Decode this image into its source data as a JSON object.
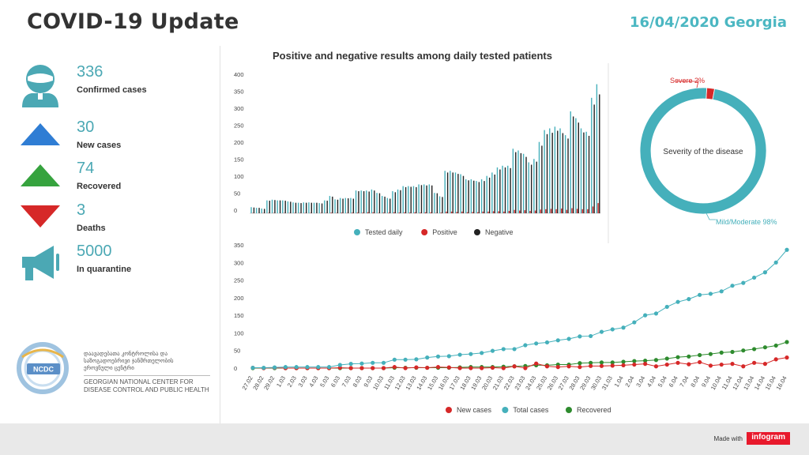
{
  "header": {
    "title": "COVID-19 Update",
    "date": "16/04/2020 Georgia"
  },
  "stats": [
    {
      "value": "336",
      "label": "Confirmed cases",
      "icon": "person-icon",
      "color": "#4ba8b4"
    },
    {
      "value": "30",
      "label": "New cases",
      "icon": "triangle-up-blue-icon",
      "color": "#2f7dd4"
    },
    {
      "value": "74",
      "label": "Recovered",
      "icon": "triangle-up-green-icon",
      "color": "#36a33e"
    },
    {
      "value": "3",
      "label": "Deaths",
      "icon": "triangle-down-red-icon",
      "color": "#d62828"
    },
    {
      "value": "5000",
      "label": "In quarantine",
      "icon": "megaphone-icon",
      "color": "#4ba8b4"
    }
  ],
  "logo": {
    "badge": "NCDC",
    "text_ka": "დაავადებათა კონტროლისა და საზოგადოებრივი ჯანმრთელობის ეროვნული ცენტრი",
    "text_en": "GEORGIAN NATIONAL CENTER FOR DISEASE CONTROL AND PUBLIC HEALTH"
  },
  "footer": {
    "made_with": "Made with",
    "brand": "infogram"
  },
  "chart_data": [
    {
      "type": "bar",
      "title": "Positive and negative results among daily tested patients",
      "ylim": [
        0,
        400
      ],
      "yticks": [
        0,
        50,
        100,
        150,
        200,
        250,
        300,
        350,
        400
      ],
      "legend_position": "bottom",
      "series": [
        {
          "name": "Tested daily",
          "color": "#45b0bb",
          "values": [
            18,
            16,
            14,
            38,
            40,
            38,
            38,
            35,
            32,
            31,
            32,
            32,
            31,
            30,
            38,
            51,
            41,
            45,
            45,
            45,
            67,
            67,
            67,
            70,
            60,
            51,
            45,
            65,
            70,
            80,
            80,
            80,
            85,
            85,
            85,
            60,
            50,
            125,
            125,
            120,
            115,
            100,
            100,
            95,
            100,
            110,
            120,
            135,
            140,
            140,
            190,
            185,
            175,
            150,
            160,
            210,
            245,
            250,
            255,
            250,
            230,
            300,
            280,
            250,
            240,
            340,
            380
          ]
        },
        {
          "name": "Positive",
          "color": "#d62828",
          "values": [
            1,
            0,
            1,
            1,
            1,
            0,
            1,
            1,
            1,
            1,
            1,
            1,
            0,
            1,
            1,
            2,
            1,
            2,
            1,
            2,
            2,
            2,
            3,
            3,
            1,
            2,
            2,
            3,
            2,
            3,
            2,
            3,
            2,
            3,
            3,
            1,
            2,
            5,
            5,
            4,
            5,
            3,
            4,
            3,
            5,
            5,
            6,
            6,
            5,
            7,
            10,
            8,
            9,
            7,
            8,
            11,
            12,
            13,
            12,
            14,
            10,
            15,
            13,
            12,
            12,
            20,
            30
          ]
        },
        {
          "name": "Negative",
          "color": "#222222",
          "values": [
            17,
            16,
            13,
            37,
            39,
            38,
            37,
            34,
            31,
            30,
            31,
            31,
            31,
            29,
            37,
            49,
            40,
            43,
            44,
            43,
            65,
            65,
            64,
            67,
            59,
            49,
            43,
            62,
            68,
            77,
            78,
            77,
            83,
            82,
            82,
            59,
            48,
            120,
            120,
            116,
            110,
            97,
            96,
            92,
            95,
            105,
            114,
            129,
            135,
            133,
            180,
            177,
            166,
            143,
            152,
            199,
            233,
            237,
            243,
            236,
            220,
            285,
            267,
            238,
            228,
            320,
            350
          ]
        }
      ]
    },
    {
      "type": "pie",
      "title": "Severity of the disease",
      "center_label": "Severity of the disease",
      "slices": [
        {
          "label": "Severe 2%",
          "value": 2,
          "color": "#d62828"
        },
        {
          "label": "Mild/Moderate 98%",
          "value": 98,
          "color": "#45b0bb"
        }
      ]
    },
    {
      "type": "line",
      "ylim": [
        0,
        350
      ],
      "yticks": [
        0,
        50,
        100,
        150,
        200,
        250,
        300,
        350
      ],
      "legend_position": "bottom",
      "categories": [
        "27.02",
        "28.02",
        "29.02",
        "1.03",
        "2.03",
        "3.03",
        "4.03",
        "5.03",
        "6.03",
        "7.03",
        "8.03",
        "9.03",
        "10.03",
        "11.03",
        "12.03",
        "13.03",
        "14.03",
        "15.03",
        "16.03",
        "17.03",
        "18.03",
        "19.03",
        "20.03",
        "21.03",
        "22.03",
        "23.03",
        "24.03",
        "25.03",
        "26.03",
        "27.03",
        "28.03",
        "29.03",
        "30.03",
        "31.03",
        "1.04",
        "2.04",
        "3.04",
        "4.04",
        "5.04",
        "6.04",
        "7.04",
        "8.04",
        "9.04",
        "10.04",
        "11.04",
        "12.04",
        "13.04",
        "14.04",
        "15.04",
        "16.04"
      ],
      "series": [
        {
          "name": "New cases",
          "color": "#d62828",
          "values": [
            1,
            0,
            1,
            0,
            0,
            0,
            0,
            0,
            1,
            0,
            0,
            0,
            0,
            3,
            0,
            2,
            1,
            3,
            2,
            0,
            0,
            0,
            1,
            0,
            5,
            0,
            13,
            5,
            3,
            5,
            3,
            6,
            6,
            7,
            8,
            10,
            12,
            5,
            10,
            15,
            11,
            17,
            7,
            10,
            12,
            5,
            15,
            12,
            25,
            30
          ]
        },
        {
          "name": "Total cases",
          "color": "#45b0bb",
          "values": [
            1,
            1,
            2,
            3,
            3,
            3,
            3,
            3,
            9,
            12,
            13,
            15,
            15,
            24,
            24,
            25,
            30,
            33,
            34,
            38,
            40,
            43,
            49,
            54,
            54,
            65,
            70,
            73,
            79,
            83,
            90,
            91,
            103,
            110,
            115,
            130,
            150,
            155,
            174,
            188,
            196,
            208,
            211,
            218,
            234,
            242,
            257,
            272,
            300,
            336
          ]
        },
        {
          "name": "Recovered",
          "color": "#2e8b2e",
          "values": [
            0,
            0,
            0,
            0,
            0,
            0,
            0,
            0,
            0,
            0,
            0,
            0,
            0,
            1,
            1,
            1,
            1,
            1,
            1,
            2,
            3,
            3,
            3,
            4,
            5,
            6,
            8,
            8,
            10,
            10,
            14,
            15,
            16,
            16,
            18,
            20,
            21,
            23,
            27,
            31,
            33,
            37,
            40,
            44,
            46,
            50,
            54,
            59,
            64,
            74
          ]
        }
      ]
    }
  ]
}
